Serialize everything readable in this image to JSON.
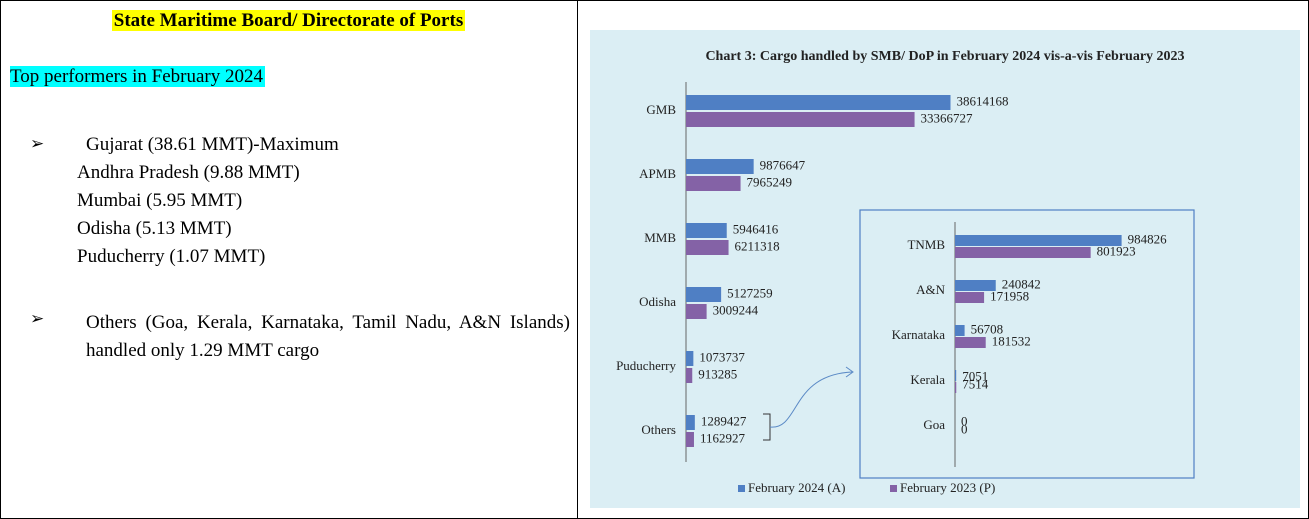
{
  "left": {
    "heading": "State Maritime Board/ Directorate of Ports",
    "subheading": "Top performers in February 2024",
    "bullets": [
      {
        "lines": [
          "Gujarat (38.61 MMT)-Maximum",
          "Andhra Pradesh (9.88 MMT)",
          "Mumbai (5.95 MMT)",
          "Odisha (5.13 MMT)",
          "Puducherry (1.07 MMT)"
        ]
      },
      {
        "lines": [
          "Others (Goa, Kerala, Karnataka, Tamil Nadu, A&N Islands) handled only 1.29 MMT cargo"
        ]
      }
    ]
  },
  "chart_data": [
    {
      "type": "bar",
      "orientation": "horizontal",
      "title": "Chart 3: Cargo handled by SMB/ DoP in February 2024 vis-a-vis February 2023",
      "categories": [
        "GMB",
        "APMB",
        "MMB",
        "Odisha",
        "Puducherry",
        "Others"
      ],
      "series": [
        {
          "name": "February 2024 (A)",
          "color": "#4f7fc4",
          "values": [
            38614168,
            9876647,
            5946416,
            5127259,
            1073737,
            1289427
          ]
        },
        {
          "name": "February 2023 (P)",
          "color": "#8462a6",
          "values": [
            33366727,
            7965249,
            6211318,
            3009244,
            913285,
            1162927
          ]
        }
      ],
      "xlim": [
        0,
        40000000
      ]
    },
    {
      "type": "bar",
      "orientation": "horizontal",
      "categories": [
        "TNMB",
        "A&N",
        "Karnataka",
        "Kerala",
        "Goa"
      ],
      "series": [
        {
          "color": "#4f7fc4",
          "values": [
            984826,
            240842,
            56708,
            7051,
            0
          ]
        },
        {
          "color": "#8462a6",
          "values": [
            801923,
            171958,
            181532,
            7514,
            0
          ]
        }
      ],
      "xlim": [
        0,
        1200000
      ]
    }
  ]
}
